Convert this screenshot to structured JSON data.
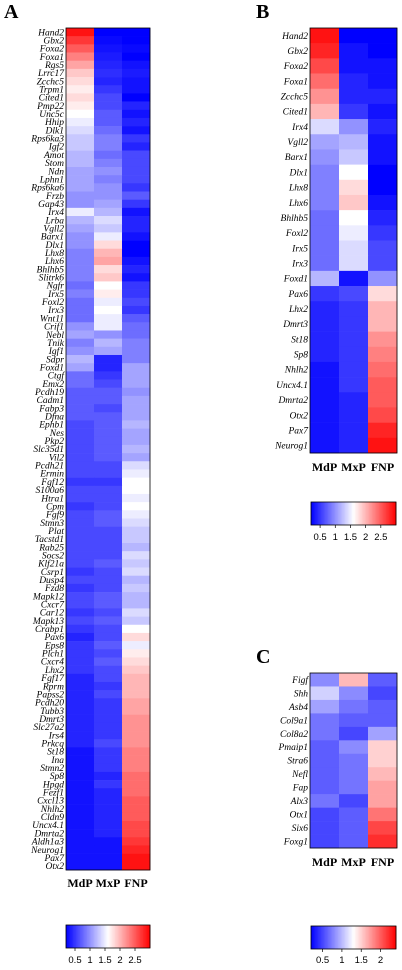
{
  "figure": {
    "panels": [
      "A",
      "B",
      "C"
    ]
  },
  "colors": {
    "low": "#0000ff",
    "mid": "#ffffff",
    "high": "#ff0000"
  },
  "colorbar_ticks": [
    0.5,
    1,
    1.5,
    2,
    2.5
  ],
  "chart_data": [
    {
      "type": "heatmap",
      "panel": "A",
      "columns": [
        "MdP",
        "MxP",
        "FNP"
      ],
      "rows": [
        "Hand2",
        "Gbx2",
        "Foxa2",
        "Foxa1",
        "Rgs5",
        "Lrrc17",
        "Zcchc5",
        "Trpm1",
        "Cited1",
        "Pmp22",
        "Unc5c",
        "Hhip",
        "Dlk1",
        "Rps6ka3",
        "Igf2",
        "Amot",
        "Stom",
        "Ndn",
        "Lphn1",
        "Rps6ka6",
        "Frzb",
        "Gap43",
        "Irx4",
        "Lrba",
        "Vgll2",
        "Barx1",
        "Dlx1",
        "Lhx8",
        "Lhx6",
        "Bhlhb5",
        "Slitrk6",
        "Ngfr",
        "Irx5",
        "Foxl2",
        "Irx3",
        "Wnt11",
        "Crif1",
        "Nebl",
        "Tnik",
        "Igf1",
        "Sdpr",
        "Foxd1",
        "Ctgf",
        "Emx2",
        "Pcdh19",
        "Cadm1",
        "Fabp3",
        "Dfna",
        "Ephb1",
        "Nes",
        "Pkp2",
        "Slc35d1",
        "Vil2",
        "Pcdh21",
        "Ermin",
        "Fgf12",
        "S100a6",
        "Htra1",
        "Cpm",
        "Fgf9",
        "Stmn3",
        "Plat",
        "Tacstd1",
        "Rab25",
        "Socs2",
        "Klf21a",
        "Csrp1",
        "Dusp4",
        "Fzd8",
        "Mapk12",
        "Cxcr7",
        "Car12",
        "Mapk13",
        "Crabp1",
        "Pax6",
        "Eps8",
        "Plch1",
        "Cxcr4",
        "Lhx2",
        "Fgf17",
        "Rprm",
        "Papss2",
        "Pcdh20",
        "Tubb3",
        "Dmrt3",
        "Slc27a2",
        "Irs4",
        "Prkcq",
        "St18",
        "Ina",
        "Stmn2",
        "Sp8",
        "Hpgd",
        "Fezf1",
        "Cxcl13",
        "Nhlh2",
        "Cldn9",
        "Uncx4.1",
        "Dmrta2",
        "Aldh1a3",
        "Neurog1",
        "Pax7",
        "Otx2"
      ],
      "values": [
        [
          2.9,
          0.2,
          0.2
        ],
        [
          2.7,
          0.25,
          0.2
        ],
        [
          2.5,
          0.3,
          0.25
        ],
        [
          2.3,
          0.35,
          0.2
        ],
        [
          2.1,
          0.4,
          0.3
        ],
        [
          1.9,
          0.45,
          0.35
        ],
        [
          1.8,
          0.4,
          0.3
        ],
        [
          1.7,
          0.5,
          0.3
        ],
        [
          1.8,
          0.6,
          0.2
        ],
        [
          1.7,
          0.6,
          0.4
        ],
        [
          1.6,
          0.7,
          0.3
        ],
        [
          1.5,
          0.7,
          0.4
        ],
        [
          1.4,
          0.8,
          0.3
        ],
        [
          1.3,
          0.9,
          0.5
        ],
        [
          1.3,
          0.9,
          0.4
        ],
        [
          1.2,
          0.8,
          0.6
        ],
        [
          1.2,
          0.9,
          0.6
        ],
        [
          1.1,
          1.0,
          0.6
        ],
        [
          1.1,
          0.9,
          0.6
        ],
        [
          1.1,
          1.0,
          0.5
        ],
        [
          1.0,
          1.0,
          0.7
        ],
        [
          1.0,
          1.1,
          0.5
        ],
        [
          1.5,
          1.2,
          0.3
        ],
        [
          1.2,
          1.4,
          0.4
        ],
        [
          1.1,
          1.3,
          0.4
        ],
        [
          1.0,
          1.5,
          0.3
        ],
        [
          1.0,
          1.8,
          0.2
        ],
        [
          0.9,
          2.0,
          0.2
        ],
        [
          0.9,
          2.1,
          0.3
        ],
        [
          0.9,
          1.8,
          0.4
        ],
        [
          0.9,
          1.9,
          0.3
        ],
        [
          0.8,
          1.6,
          0.5
        ],
        [
          0.9,
          1.7,
          0.5
        ],
        [
          0.8,
          1.5,
          0.6
        ],
        [
          0.8,
          1.6,
          0.5
        ],
        [
          0.8,
          1.5,
          0.7
        ],
        [
          1.0,
          1.5,
          0.8
        ],
        [
          1.1,
          1.0,
          0.8
        ],
        [
          0.9,
          1.2,
          0.9
        ],
        [
          1.0,
          1.1,
          0.9
        ],
        [
          1.2,
          0.4,
          0.9
        ],
        [
          1.1,
          0.4,
          1.1
        ],
        [
          0.8,
          0.5,
          1.1
        ],
        [
          0.8,
          0.6,
          1.1
        ],
        [
          0.7,
          0.7,
          1.0
        ],
        [
          0.7,
          0.7,
          1.1
        ],
        [
          0.7,
          0.6,
          1.1
        ],
        [
          0.7,
          0.7,
          1.1
        ],
        [
          0.6,
          0.7,
          1.2
        ],
        [
          0.6,
          0.7,
          1.1
        ],
        [
          0.6,
          0.7,
          1.1
        ],
        [
          0.6,
          0.7,
          1.2
        ],
        [
          0.6,
          0.7,
          1.1
        ],
        [
          0.6,
          0.6,
          1.4
        ],
        [
          0.6,
          0.6,
          1.5
        ],
        [
          0.5,
          0.5,
          1.6
        ],
        [
          0.6,
          0.6,
          1.6
        ],
        [
          0.6,
          0.6,
          1.5
        ],
        [
          0.5,
          0.6,
          1.6
        ],
        [
          0.6,
          0.7,
          1.5
        ],
        [
          0.6,
          0.7,
          1.4
        ],
        [
          0.6,
          0.6,
          1.3
        ],
        [
          0.6,
          0.6,
          1.3
        ],
        [
          0.6,
          0.6,
          1.2
        ],
        [
          0.6,
          0.6,
          1.4
        ],
        [
          0.6,
          0.7,
          1.3
        ],
        [
          0.5,
          0.6,
          1.4
        ],
        [
          0.6,
          0.6,
          1.2
        ],
        [
          0.5,
          0.6,
          1.3
        ],
        [
          0.6,
          0.7,
          1.2
        ],
        [
          0.6,
          0.7,
          1.2
        ],
        [
          0.5,
          0.6,
          1.4
        ],
        [
          0.6,
          0.7,
          1.3
        ],
        [
          0.5,
          0.6,
          1.6
        ],
        [
          0.4,
          0.6,
          1.8
        ],
        [
          0.5,
          0.7,
          1.5
        ],
        [
          0.5,
          0.6,
          1.7
        ],
        [
          0.5,
          0.7,
          1.8
        ],
        [
          0.5,
          0.6,
          1.9
        ],
        [
          0.4,
          0.6,
          2.0
        ],
        [
          0.4,
          0.5,
          2.0
        ],
        [
          0.4,
          0.6,
          2.0
        ],
        [
          0.4,
          0.5,
          2.1
        ],
        [
          0.4,
          0.5,
          2.1
        ],
        [
          0.4,
          0.5,
          2.2
        ],
        [
          0.4,
          0.5,
          2.2
        ],
        [
          0.4,
          0.5,
          2.2
        ],
        [
          0.4,
          0.6,
          2.2
        ],
        [
          0.3,
          0.5,
          2.3
        ],
        [
          0.3,
          0.5,
          2.3
        ],
        [
          0.3,
          0.5,
          2.3
        ],
        [
          0.3,
          0.4,
          2.4
        ],
        [
          0.3,
          0.5,
          2.4
        ],
        [
          0.3,
          0.4,
          2.4
        ],
        [
          0.3,
          0.4,
          2.5
        ],
        [
          0.3,
          0.4,
          2.5
        ],
        [
          0.3,
          0.4,
          2.5
        ],
        [
          0.3,
          0.4,
          2.6
        ],
        [
          0.3,
          0.4,
          2.6
        ],
        [
          0.3,
          0.3,
          2.7
        ],
        [
          0.3,
          0.3,
          2.8
        ],
        [
          0.3,
          0.3,
          2.9
        ],
        [
          0.3,
          0.3,
          2.9
        ]
      ],
      "colorbar": {
        "min": 0.2,
        "max": 3.0,
        "ticks": [
          0.5,
          1,
          1.5,
          2,
          2.5
        ]
      }
    },
    {
      "type": "heatmap",
      "panel": "B",
      "columns": [
        "MdP",
        "MxP",
        "FNP"
      ],
      "rows": [
        "Hand2",
        "Gbx2",
        "Foxa2",
        "Foxa1",
        "Zcchc5",
        "Cited1",
        "Irx4",
        "Vgll2",
        "Barx1",
        "Dlx1",
        "Lhx8",
        "Lhx6",
        "Bhlhb5",
        "Foxl2",
        "Irx5",
        "Irx3",
        "Foxd1",
        "Pax6",
        "Lhx2",
        "Dmrt3",
        "St18",
        "Sp8",
        "Nhlh2",
        "Uncx4.1",
        "Dmrta2",
        "Otx2",
        "Pax7",
        "Neurog1"
      ],
      "values": [
        [
          2.9,
          0.2,
          0.2
        ],
        [
          2.8,
          0.3,
          0.2
        ],
        [
          2.6,
          0.3,
          0.3
        ],
        [
          2.4,
          0.4,
          0.3
        ],
        [
          2.2,
          0.4,
          0.4
        ],
        [
          2.0,
          0.5,
          0.3
        ],
        [
          1.4,
          1.0,
          0.4
        ],
        [
          1.1,
          1.2,
          0.3
        ],
        [
          1.0,
          1.3,
          0.3
        ],
        [
          0.9,
          1.6,
          0.2
        ],
        [
          0.9,
          1.8,
          0.2
        ],
        [
          0.9,
          1.9,
          0.3
        ],
        [
          0.8,
          1.6,
          0.4
        ],
        [
          0.8,
          1.5,
          0.5
        ],
        [
          0.8,
          1.4,
          0.6
        ],
        [
          0.8,
          1.4,
          0.6
        ],
        [
          1.2,
          0.3,
          1.0
        ],
        [
          0.5,
          0.6,
          1.8
        ],
        [
          0.4,
          0.5,
          2.0
        ],
        [
          0.4,
          0.5,
          2.0
        ],
        [
          0.4,
          0.5,
          2.2
        ],
        [
          0.4,
          0.5,
          2.3
        ],
        [
          0.3,
          0.5,
          2.4
        ],
        [
          0.3,
          0.5,
          2.5
        ],
        [
          0.3,
          0.4,
          2.5
        ],
        [
          0.3,
          0.4,
          2.6
        ],
        [
          0.3,
          0.4,
          2.8
        ],
        [
          0.3,
          0.4,
          2.9
        ]
      ],
      "colorbar": {
        "min": 0.2,
        "max": 3.0,
        "ticks": [
          0.5,
          1,
          1.5,
          2,
          2.5
        ]
      }
    },
    {
      "type": "heatmap",
      "panel": "C",
      "columns": [
        "MdP",
        "MxP",
        "FNP"
      ],
      "rows": [
        "Figf",
        "Shh",
        "Asb4",
        "Col9a1",
        "Col8a2",
        "Pmaip1",
        "Stra6",
        "Nefl",
        "Fap",
        "Alx3",
        "Otx1",
        "Six6",
        "Foxg1"
      ],
      "values": [
        [
          0.8,
          1.6,
          0.6
        ],
        [
          1.1,
          0.8,
          0.5
        ],
        [
          0.9,
          0.7,
          0.6
        ],
        [
          0.7,
          0.6,
          0.6
        ],
        [
          0.7,
          0.5,
          0.9
        ],
        [
          0.6,
          0.8,
          1.5
        ],
        [
          0.6,
          0.7,
          1.5
        ],
        [
          0.6,
          0.7,
          1.6
        ],
        [
          0.6,
          0.7,
          1.7
        ],
        [
          0.7,
          0.5,
          1.7
        ],
        [
          0.5,
          0.6,
          1.9
        ],
        [
          0.5,
          0.6,
          2.1
        ],
        [
          0.5,
          0.6,
          2.2
        ]
      ],
      "colorbar": {
        "min": 0.2,
        "max": 2.4,
        "ticks": [
          0.5,
          1,
          1.5,
          2
        ]
      }
    }
  ]
}
